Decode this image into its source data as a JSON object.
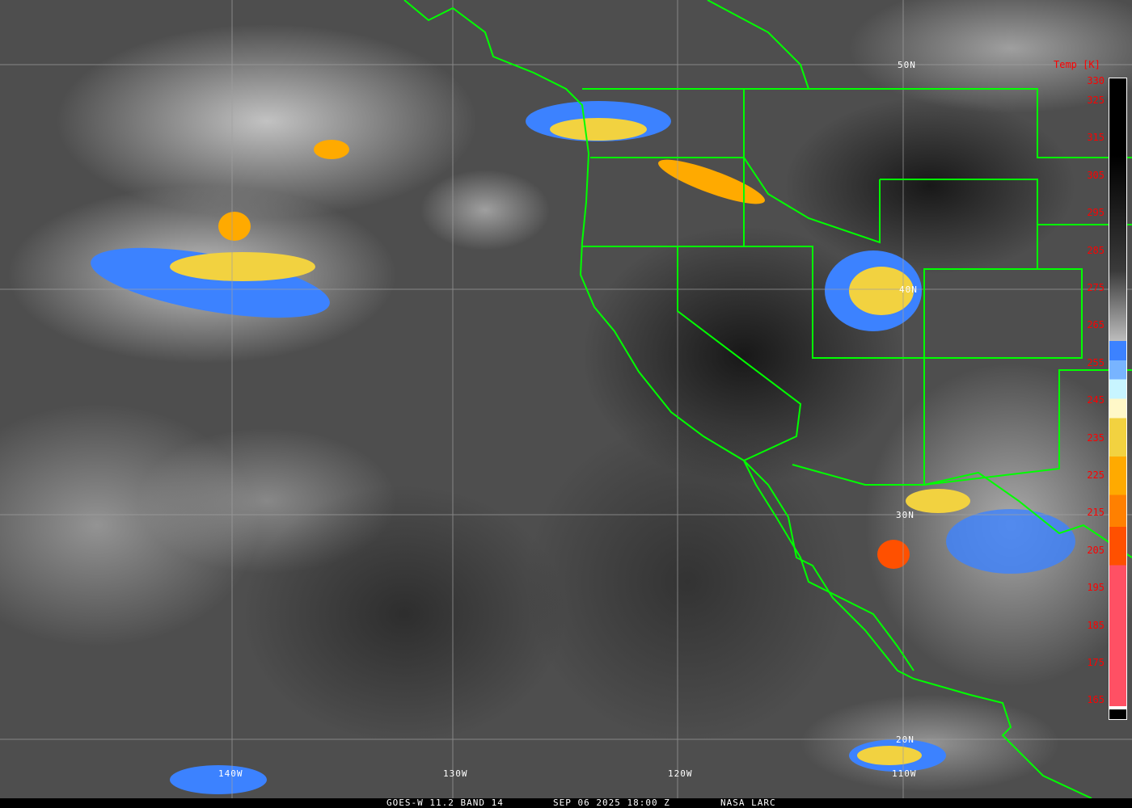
{
  "title": "GOES-W 11.2 BAND 14",
  "datetime": "SEP 06 2025 18:00 Z",
  "source": "NASA LARC",
  "colorbar": {
    "label": "Temp [K]",
    "ticks": [
      "330",
      "325",
      "315",
      "305",
      "295",
      "285",
      "275",
      "265",
      "255",
      "245",
      "235",
      "225",
      "215",
      "205",
      "195",
      "185",
      "175",
      "165"
    ],
    "range_k": [
      165,
      330
    ],
    "colors": {
      "warm": "#000000",
      "cold_gray": "#bdbdbd",
      "blue": "#3c82ff",
      "light_blue": "#78b4ff",
      "cyan": "#c8f5ff",
      "pale_yellow": "#fff8c8",
      "yellow": "#f2d240",
      "amber": "#ffaa00",
      "orange": "#ff8000",
      "red_orange": "#ff5000",
      "pink": "#ff5064"
    }
  },
  "grid": {
    "lat_labels": [
      "50N",
      "40N",
      "30N",
      "20N"
    ],
    "lon_labels": [
      "140W",
      "130W",
      "120W",
      "110W"
    ]
  },
  "colors": {
    "borders": "#00ff00",
    "gridlines": "#a0a0a0",
    "labels_tick": "#ff0000"
  }
}
